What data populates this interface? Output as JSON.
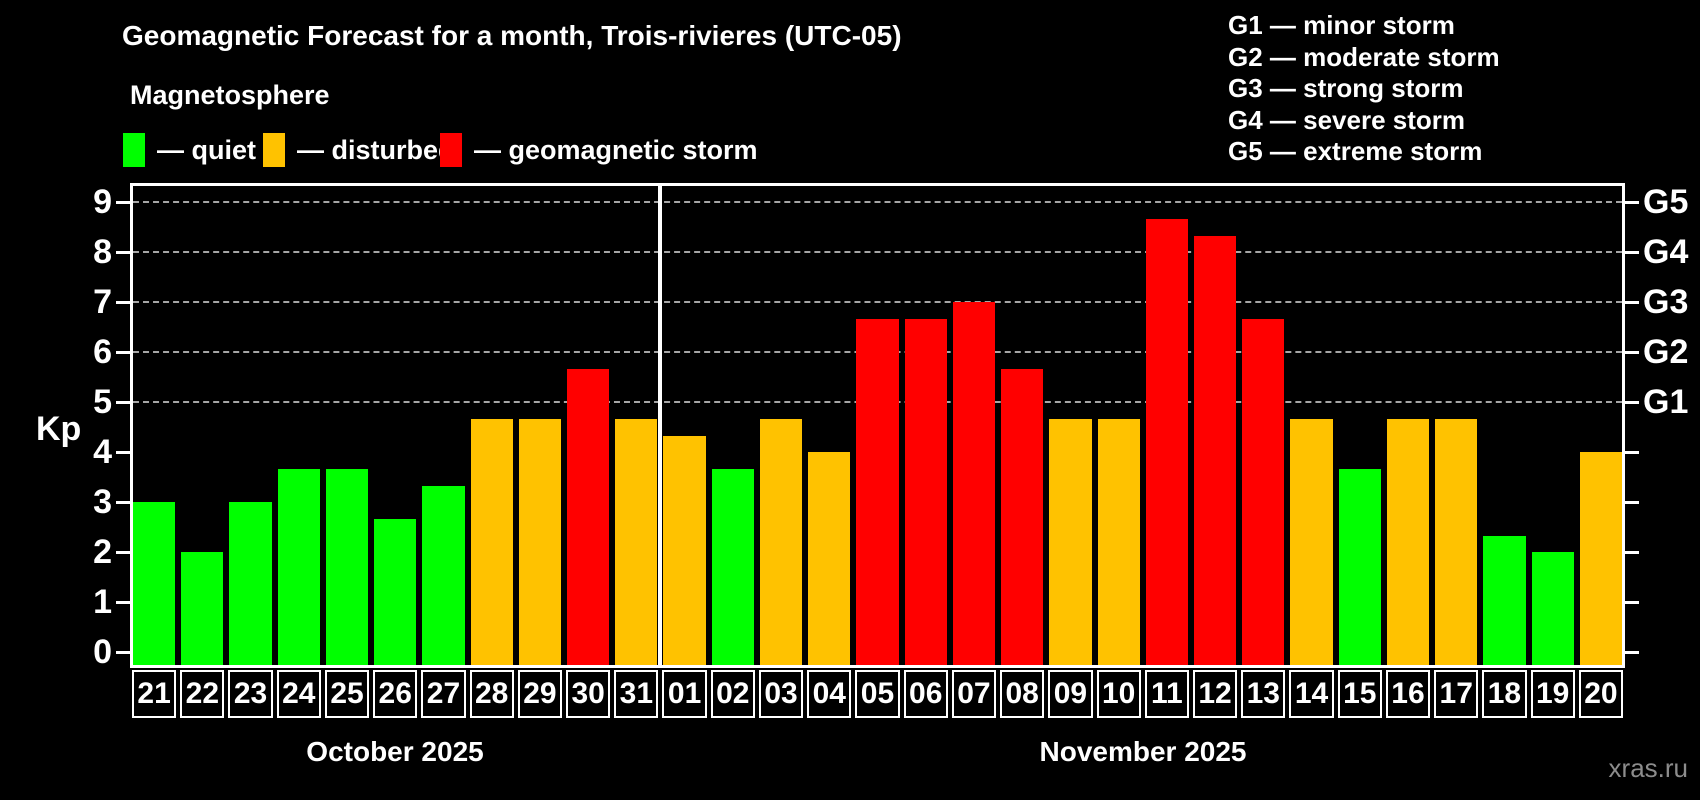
{
  "title": "Geomagnetic Forecast for a month, Trois-rivieres (UTC-05)",
  "subtitle": "Magnetosphere",
  "legend": {
    "quiet": "— quiet",
    "disturbed": "— disturbed",
    "storm": "— geomagnetic storm"
  },
  "g_legend": [
    "G1 — minor storm",
    "G2 — moderate storm",
    "G3 — strong storm",
    "G4 — severe storm",
    "G5 — extreme storm"
  ],
  "watermark": "xras.ru",
  "colors": {
    "quiet": "#00ff00",
    "disturbed": "#ffc200",
    "storm": "#ff0000",
    "grid": "#a6a6a6",
    "frame": "#ffffff",
    "text": "#ffffff",
    "watermark": "#8c8c8c",
    "background": "#000000"
  },
  "chart_data": {
    "type": "bar",
    "ylabel": "Kp",
    "ylim": [
      0,
      9
    ],
    "yticks": [
      0,
      1,
      2,
      3,
      4,
      5,
      6,
      7,
      8,
      9
    ],
    "gridline_levels": [
      5,
      6,
      7,
      8,
      9
    ],
    "grid": "dashed",
    "right_axis_labels": [
      {
        "kp": 5,
        "label": "G1"
      },
      {
        "kp": 6,
        "label": "G2"
      },
      {
        "kp": 7,
        "label": "G3"
      },
      {
        "kp": 8,
        "label": "G4"
      },
      {
        "kp": 9,
        "label": "G5"
      }
    ],
    "months": [
      {
        "label": "October 2025",
        "days": 11
      },
      {
        "label": "November 2025",
        "days": 20
      }
    ],
    "bars": [
      {
        "day": "21",
        "kp": 3.0,
        "status": "quiet"
      },
      {
        "day": "22",
        "kp": 2.0,
        "status": "quiet"
      },
      {
        "day": "23",
        "kp": 3.0,
        "status": "quiet"
      },
      {
        "day": "24",
        "kp": 3.67,
        "status": "quiet"
      },
      {
        "day": "25",
        "kp": 3.67,
        "status": "quiet"
      },
      {
        "day": "26",
        "kp": 2.67,
        "status": "quiet"
      },
      {
        "day": "27",
        "kp": 3.33,
        "status": "quiet"
      },
      {
        "day": "28",
        "kp": 4.67,
        "status": "disturbed"
      },
      {
        "day": "29",
        "kp": 4.67,
        "status": "disturbed"
      },
      {
        "day": "30",
        "kp": 5.67,
        "status": "storm"
      },
      {
        "day": "31",
        "kp": 4.67,
        "status": "disturbed"
      },
      {
        "day": "01",
        "kp": 4.33,
        "status": "disturbed"
      },
      {
        "day": "02",
        "kp": 3.67,
        "status": "quiet"
      },
      {
        "day": "03",
        "kp": 4.67,
        "status": "disturbed"
      },
      {
        "day": "04",
        "kp": 4.0,
        "status": "disturbed"
      },
      {
        "day": "05",
        "kp": 6.67,
        "status": "storm"
      },
      {
        "day": "06",
        "kp": 6.67,
        "status": "storm"
      },
      {
        "day": "07",
        "kp": 7.0,
        "status": "storm"
      },
      {
        "day": "08",
        "kp": 5.67,
        "status": "storm"
      },
      {
        "day": "09",
        "kp": 4.67,
        "status": "disturbed"
      },
      {
        "day": "10",
        "kp": 4.67,
        "status": "disturbed"
      },
      {
        "day": "11",
        "kp": 8.67,
        "status": "storm"
      },
      {
        "day": "12",
        "kp": 8.33,
        "status": "storm"
      },
      {
        "day": "13",
        "kp": 6.67,
        "status": "storm"
      },
      {
        "day": "14",
        "kp": 4.67,
        "status": "disturbed"
      },
      {
        "day": "15",
        "kp": 3.67,
        "status": "quiet"
      },
      {
        "day": "16",
        "kp": 4.67,
        "status": "disturbed"
      },
      {
        "day": "17",
        "kp": 4.67,
        "status": "disturbed"
      },
      {
        "day": "18",
        "kp": 2.33,
        "status": "quiet"
      },
      {
        "day": "19",
        "kp": 2.0,
        "status": "quiet"
      },
      {
        "day": "20",
        "kp": 4.0,
        "status": "disturbed"
      }
    ]
  }
}
